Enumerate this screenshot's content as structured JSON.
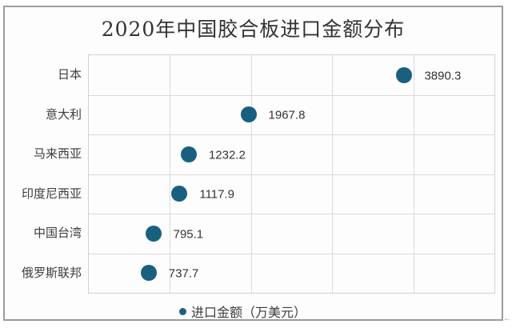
{
  "chart_data": {
    "type": "scatter",
    "title": "2020年中国胶合板进口金额分布",
    "categories": [
      "日本",
      "意大利",
      "马来西亚",
      "印度尼西亚",
      "中国台湾",
      "俄罗斯联邦"
    ],
    "values": [
      3890.3,
      1967.8,
      1232.2,
      1117.9,
      795.1,
      737.7
    ],
    "value_labels": [
      "3890.3",
      "1967.8",
      "1232.2",
      "1117.9",
      "795.1",
      "737.7"
    ],
    "legend": "进口金额（万美元）",
    "legend_position": "bottom",
    "xlim": [
      0,
      5000
    ],
    "x_gridline_step": 1000,
    "x_tick_labels_visible": false,
    "grid": true,
    "ylabel": "",
    "xlabel": ""
  },
  "icons": {
    "legend_marker": "filled-circle"
  },
  "colors": {
    "marker": "#19607f",
    "legend_marker": "#1c5f82",
    "gridline": "#dadadc",
    "plot_border": "#cfd0d2",
    "frame_border": "#9c9c9c",
    "title_text": "#333333",
    "label_text": "#3c3c3c"
  },
  "watermark_fragment": "←"
}
